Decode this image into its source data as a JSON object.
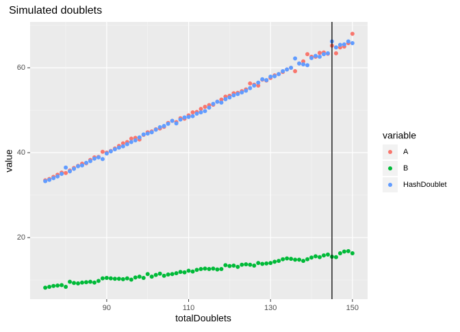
{
  "chart_data": {
    "type": "scatter",
    "title": "Simulated doublets",
    "xlabel": "totalDoublets",
    "ylabel": "value",
    "legend_title": "variable",
    "legend_position": "right",
    "x": [
      75,
      76,
      77,
      78,
      79,
      80,
      81,
      82,
      83,
      84,
      85,
      86,
      87,
      88,
      89,
      90,
      91,
      92,
      93,
      94,
      95,
      96,
      97,
      98,
      99,
      100,
      101,
      102,
      103,
      104,
      105,
      106,
      107,
      108,
      109,
      110,
      111,
      112,
      113,
      114,
      115,
      116,
      117,
      118,
      119,
      120,
      121,
      122,
      123,
      124,
      125,
      126,
      127,
      128,
      129,
      130,
      131,
      132,
      133,
      134,
      135,
      136,
      137,
      138,
      139,
      140,
      141,
      142,
      143,
      144,
      145,
      146,
      147,
      148,
      149,
      150
    ],
    "series": [
      {
        "name": "A",
        "color": "#F8766D",
        "values": [
          33.5,
          33.8,
          34.3,
          34.8,
          35.3,
          35.2,
          35.8,
          36.4,
          36.9,
          37.4,
          37.5,
          38.3,
          38.9,
          39.0,
          40.2,
          40.0,
          40.4,
          41.0,
          41.6,
          42.2,
          42.5,
          43.3,
          43.5,
          43.1,
          44.2,
          44.8,
          45.0,
          45.5,
          45.7,
          46.1,
          47.0,
          47.5,
          47.2,
          48.1,
          48.0,
          48.8,
          49.5,
          49.6,
          50.3,
          50.8,
          51.2,
          51.3,
          52.0,
          52.5,
          53.2,
          53.4,
          54.0,
          54.1,
          54.5,
          54.9,
          56.3,
          56.0,
          55.8,
          57.2,
          57.0,
          57.6,
          58.2,
          58.5,
          59.0,
          59.6,
          60.0,
          59.2,
          61.0,
          61.5,
          63.2,
          62.6,
          62.6,
          63.5,
          63.6,
          63.3,
          65.2,
          63.4,
          64.8,
          65.0,
          65.8,
          68.0
        ]
      },
      {
        "name": "B",
        "color": "#00BA38",
        "values": [
          8.2,
          8.4,
          8.6,
          8.7,
          8.8,
          8.4,
          9.6,
          9.3,
          9.2,
          9.4,
          9.5,
          9.6,
          9.4,
          9.8,
          10.4,
          10.5,
          10.4,
          10.3,
          10.3,
          10.2,
          10.4,
          10.1,
          10.6,
          10.8,
          10.5,
          11.4,
          10.8,
          11.2,
          11.5,
          11.0,
          11.3,
          11.4,
          11.6,
          11.9,
          11.8,
          12.2,
          12.0,
          12.4,
          12.6,
          12.7,
          12.6,
          12.7,
          12.5,
          12.6,
          13.5,
          13.3,
          13.4,
          13.1,
          13.6,
          13.7,
          13.6,
          13.4,
          14.0,
          13.8,
          13.9,
          14.0,
          14.3,
          14.5,
          14.9,
          15.1,
          15.0,
          14.8,
          14.8,
          14.5,
          14.9,
          15.3,
          15.6,
          15.4,
          15.8,
          16.0,
          15.5,
          15.4,
          16.3,
          16.7,
          16.8,
          16.3
        ]
      },
      {
        "name": "HashDoublet",
        "color": "#619CFF",
        "values": [
          33.3,
          33.6,
          34.0,
          34.4,
          35.0,
          36.5,
          35.6,
          36.2,
          36.8,
          37.0,
          37.6,
          38.0,
          38.6,
          38.9,
          38.5,
          39.8,
          40.3,
          40.8,
          41.2,
          41.5,
          42.0,
          42.5,
          42.9,
          43.6,
          44.3,
          44.5,
          44.8,
          45.4,
          46.0,
          46.3,
          46.8,
          47.5,
          46.9,
          47.8,
          48.3,
          48.4,
          48.6,
          49.2,
          49.5,
          49.8,
          50.6,
          51.5,
          52.0,
          51.8,
          52.6,
          53.0,
          53.5,
          53.8,
          54.2,
          54.6,
          55.2,
          55.8,
          56.5,
          57.3,
          57.1,
          57.9,
          58.0,
          58.5,
          59.2,
          59.6,
          60.0,
          62.2,
          61.0,
          60.8,
          60.6,
          62.3,
          62.8,
          62.6,
          63.2,
          63.4,
          66.2,
          64.8,
          65.4,
          65.5,
          66.2,
          65.8
        ]
      }
    ],
    "vline": 145,
    "xlim": [
      71.3,
      153.7
    ],
    "ylim": [
      5.5,
      70.8
    ],
    "xticks": [
      90,
      110,
      130,
      150
    ],
    "yticks": [
      20,
      40,
      60
    ],
    "grid": true
  }
}
